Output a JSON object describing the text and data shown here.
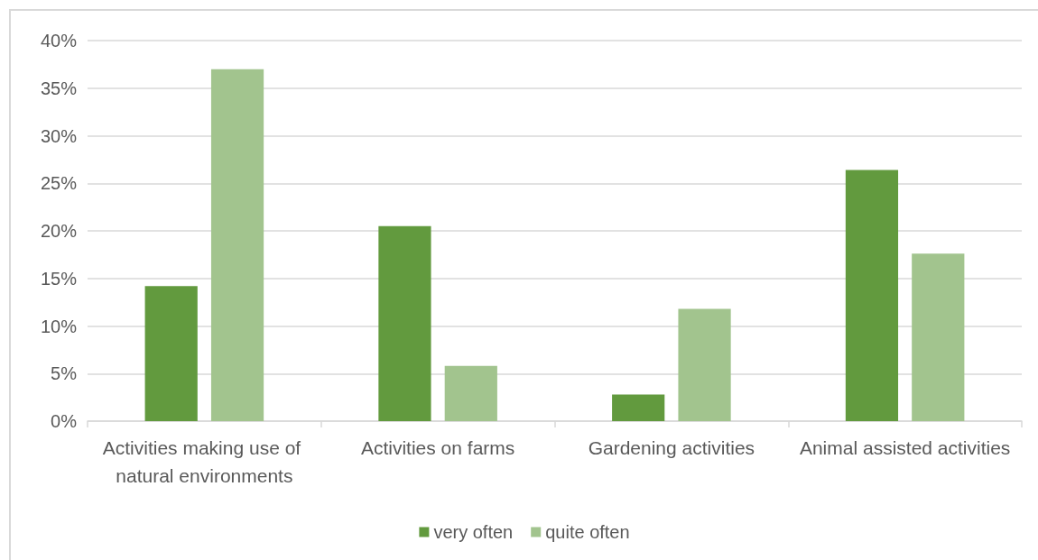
{
  "chart_data": {
    "type": "bar",
    "categories": [
      "Activities making use of natural environments",
      "Activities on farms",
      "Gardening activities",
      "Animal assisted activities"
    ],
    "series": [
      {
        "name": "very often",
        "color": "#629a3e",
        "values": [
          14.2,
          20.5,
          2.8,
          26.4
        ]
      },
      {
        "name": "quite often",
        "color": "#a2c48e",
        "values": [
          37.0,
          5.8,
          11.8,
          17.6
        ]
      }
    ],
    "ylim": [
      0,
      40
    ],
    "yticks": [
      {
        "value": 0,
        "label": "0%"
      },
      {
        "value": 5,
        "label": "5%"
      },
      {
        "value": 10,
        "label": "10%"
      },
      {
        "value": 15,
        "label": "15%"
      },
      {
        "value": 20,
        "label": "20%"
      },
      {
        "value": 25,
        "label": "25%"
      },
      {
        "value": 30,
        "label": "30%"
      },
      {
        "value": 35,
        "label": "35%"
      },
      {
        "value": 40,
        "label": "40%"
      }
    ],
    "grid": "y",
    "legend": "bottom"
  }
}
